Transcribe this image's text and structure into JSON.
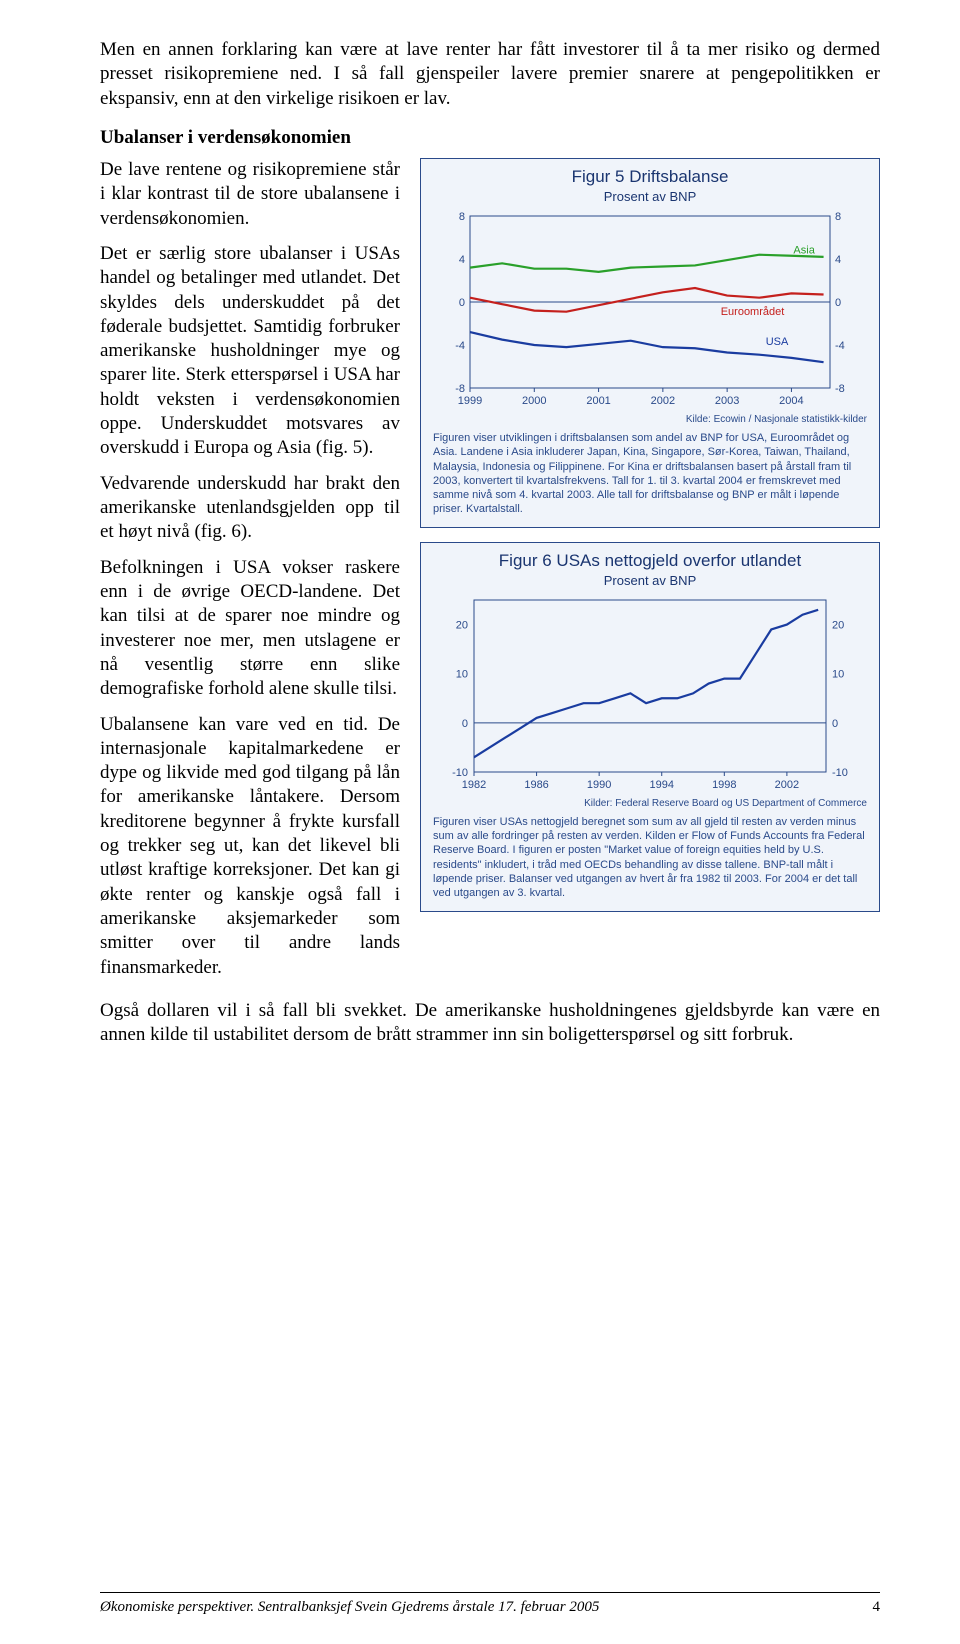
{
  "intro": {
    "p1": "Men en annen forklaring kan være at lave renter har fått investorer til å ta mer risiko og dermed presset risikopremiene ned. I så fall gjenspeiler lavere premier snarere at pengepolitikken er ekspansiv, enn at den virkelige risikoen er lav."
  },
  "heading": "Ubalanser i verdensøkonomien",
  "left": {
    "p1": "De lave rentene og risikopremiene står i klar kontrast til de store ubalansene i verdensøkonomien.",
    "p2": "Det er særlig store ubalanser i USAs handel og betalinger med utlandet. Det skyldes dels underskuddet på det føderale budsjettet. Samtidig forbruker amerikanske husholdninger mye og sparer lite. Sterk etterspørsel i USA har holdt veksten i verdensøkonomien oppe. Underskuddet motsvares av overskudd i Europa og Asia (fig. 5).",
    "p3": "Vedvarende underskudd har brakt den amerikanske utenlandsgjelden opp til et høyt nivå (fig. 6).",
    "p4": "Befolkningen i USA vokser raskere enn i de øvrige OECD-landene. Det kan tilsi at de sparer noe mindre og investerer noe mer, men utslagene er nå vesentlig større enn slike demografiske forhold alene skulle tilsi.",
    "p5": "Ubalansene kan vare ved en tid. De internasjonale kapitalmarkedene er dype og likvide med god tilgang på lån for amerikanske låntakere. Dersom kreditorene begynner å frykte kursfall og trekker seg ut, kan det likevel bli utløst kraftige korreksjoner. Det kan gi økte renter og kanskje også fall i amerikanske aksjemarkeder som smitter over til andre lands finansmarkeder."
  },
  "after": {
    "p1": "Også dollaren vil i så fall bli svekket. De amerikanske husholdningenes gjeldsbyrde kan være en annen kilde til ustabilitet dersom de brått strammer inn sin boligetterspørsel og sitt forbruk."
  },
  "fig5": {
    "title": "Figur 5 Driftsbalanse",
    "subtitle": "Prosent av BNP",
    "ylim": [
      -8,
      8
    ],
    "yticks": [
      -8,
      -4,
      0,
      4,
      8
    ],
    "xcategories": [
      "1999",
      "2000",
      "2001",
      "2002",
      "2003",
      "2004"
    ],
    "series": {
      "asia": {
        "label": "Asia",
        "color": "#2aa02a",
        "x": [
          1999,
          1999.5,
          2000,
          2000.5,
          2001,
          2001.5,
          2002,
          2002.5,
          2003,
          2003.5,
          2004,
          2004.5
        ],
        "y": [
          3.2,
          3.6,
          3.1,
          3.1,
          2.8,
          3.2,
          3.3,
          3.4,
          3.9,
          4.4,
          4.3,
          4.2
        ]
      },
      "euro": {
        "label": "Euroområdet",
        "color": "#c4201d",
        "x": [
          1999,
          1999.5,
          2000,
          2000.5,
          2001,
          2001.5,
          2002,
          2002.5,
          2003,
          2003.5,
          2004,
          2004.5
        ],
        "y": [
          0.4,
          -0.2,
          -0.8,
          -0.9,
          -0.3,
          0.3,
          0.9,
          1.3,
          0.6,
          0.4,
          0.8,
          0.7
        ]
      },
      "usa": {
        "label": "USA",
        "color": "#1a3ca0",
        "x": [
          1999,
          1999.5,
          2000,
          2000.5,
          2001,
          2001.5,
          2002,
          2002.5,
          2003,
          2003.5,
          2004,
          2004.5
        ],
        "y": [
          -2.8,
          -3.5,
          -4.0,
          -4.2,
          -3.9,
          -3.6,
          -4.2,
          -4.3,
          -4.7,
          -4.9,
          -5.2,
          -5.6
        ]
      }
    },
    "line_width": 2.2,
    "axis_color": "#2a4a8a",
    "grid_color": "#2a4a8a",
    "background": "#f0f4fa",
    "label_fontsize": 11,
    "tick_fontsize": 11,
    "source": "Kilde: Ecowin / Nasjonale statistikk-kilder",
    "caption": "Figuren viser utviklingen i driftsbalansen som andel av BNP for USA, Euroområdet og Asia. Landene i Asia inkluderer Japan, Kina, Singapore, Sør-Korea, Taiwan, Thailand, Malaysia, Indonesia og Filippinene. For Kina er driftsbalansen basert på årstall fram til 2003, konvertert til kvartalsfrekvens. Tall for 1. til 3. kvartal 2004 er fremskrevet med samme nivå som 4. kvartal 2003. Alle tall for driftsbalanse og BNP er målt i løpende priser. Kvartalstall."
  },
  "fig6": {
    "title": "Figur 6 USAs nettogjeld overfor utlandet",
    "subtitle": "Prosent av BNP",
    "ylim": [
      -10,
      25
    ],
    "yticks": [
      -10,
      0,
      10,
      20
    ],
    "xcategories": [
      "1982",
      "1986",
      "1990",
      "1994",
      "1998",
      "2002"
    ],
    "series": {
      "usa": {
        "color": "#1a3ca0",
        "x": [
          1982,
          1983,
          1984,
          1985,
          1986,
          1987,
          1988,
          1989,
          1990,
          1991,
          1992,
          1993,
          1994,
          1995,
          1996,
          1997,
          1998,
          1999,
          2000,
          2001,
          2002,
          2003,
          2004
        ],
        "y": [
          -7,
          -5,
          -3,
          -1,
          1,
          2,
          3,
          4,
          4,
          5,
          6,
          4,
          5,
          5,
          6,
          8,
          9,
          9,
          14,
          19,
          20,
          22,
          23
        ]
      }
    },
    "line_width": 2.2,
    "axis_color": "#2a4a8a",
    "background": "#f0f4fa",
    "label_fontsize": 11,
    "tick_fontsize": 11,
    "source": "Kilder: Federal Reserve Board og US Department of Commerce",
    "caption": "Figuren viser USAs nettogjeld beregnet som sum av all gjeld til resten av verden minus sum av alle fordringer på resten av verden. Kilden er Flow of Funds Accounts fra Federal Reserve Board. I figuren er posten \"Market value of foreign equities held by U.S. residents\" inkludert, i tråd med OECDs behandling av disse tallene. BNP-tall målt i løpende priser. Balanser ved utgangen av hvert år fra 1982 til 2003. For 2004 er det tall ved utgangen av 3. kvartal."
  },
  "footer": {
    "text": "Økonomiske perspektiver. Sentralbanksjef Svein Gjedrems årstale 17. februar 2005",
    "page": "4"
  }
}
